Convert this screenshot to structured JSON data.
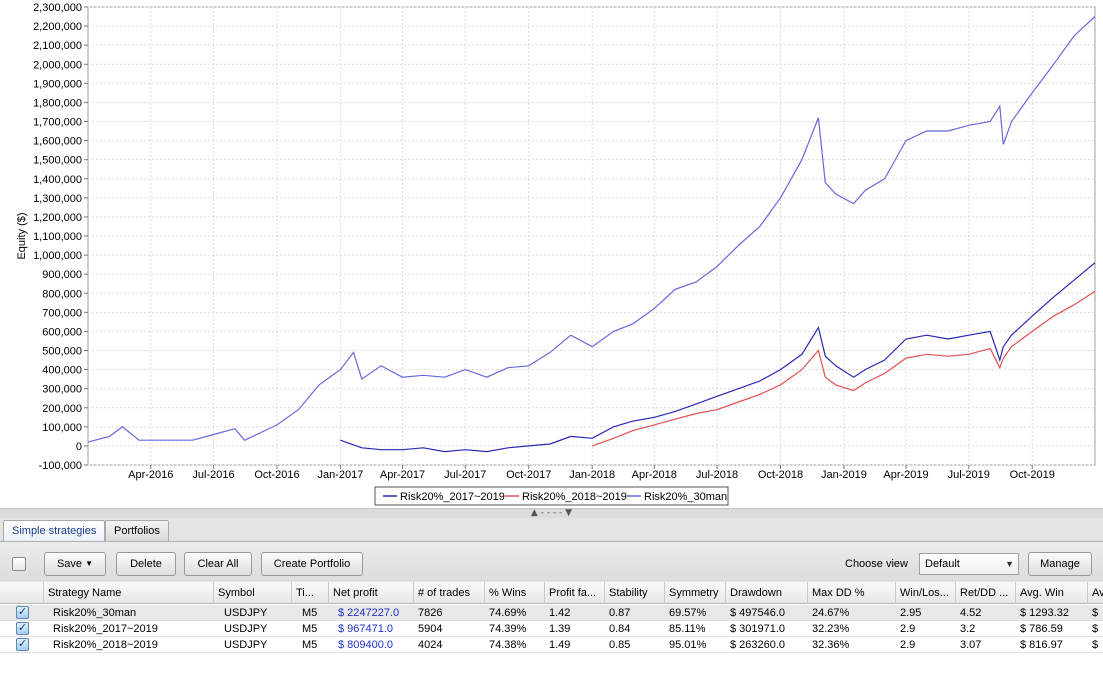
{
  "chart_data": {
    "type": "line",
    "title": "",
    "xlabel": "",
    "ylabel": "Equity ($)",
    "ylim": [
      -100000,
      2300000
    ],
    "yticks": [
      "2,300,000",
      "2,200,000",
      "2,100,000",
      "2,000,000",
      "1,900,000",
      "1,800,000",
      "1,700,000",
      "1,600,000",
      "1,500,000",
      "1,400,000",
      "1,300,000",
      "1,200,000",
      "1,100,000",
      "1,000,000",
      "900,000",
      "800,000",
      "700,000",
      "600,000",
      "500,000",
      "400,000",
      "300,000",
      "200,000",
      "100,000",
      "0",
      "-100,000"
    ],
    "xticks": [
      "Apr-2016",
      "Jul-2016",
      "Oct-2016",
      "Jan-2017",
      "Apr-2017",
      "Jul-2017",
      "Oct-2017",
      "Jan-2018",
      "Apr-2018",
      "Jul-2018",
      "Oct-2018",
      "Jan-2019",
      "Apr-2019",
      "Jul-2019",
      "Oct-2019"
    ],
    "xrange": [
      "2016-01-01",
      "2019-12-31"
    ],
    "grid": true,
    "legend_position": "bottom-center",
    "series": [
      {
        "name": "Risk20%_2017~2019",
        "color": "#2828b4",
        "x": [
          "2017-01-01",
          "2017-02-01",
          "2017-03-01",
          "2017-04-01",
          "2017-05-01",
          "2017-06-01",
          "2017-07-01",
          "2017-08-01",
          "2017-09-01",
          "2017-10-01",
          "2017-11-01",
          "2017-12-01",
          "2018-01-01",
          "2018-02-01",
          "2018-03-01",
          "2018-04-01",
          "2018-05-01",
          "2018-06-01",
          "2018-07-01",
          "2018-08-01",
          "2018-09-01",
          "2018-10-01",
          "2018-11-01",
          "2018-11-25",
          "2018-12-05",
          "2018-12-20",
          "2019-01-15",
          "2019-02-01",
          "2019-03-01",
          "2019-04-01",
          "2019-05-01",
          "2019-06-01",
          "2019-07-01",
          "2019-08-01",
          "2019-08-15",
          "2019-08-20",
          "2019-09-01",
          "2019-10-01",
          "2019-11-01",
          "2019-12-01",
          "2019-12-31"
        ],
        "values": [
          30000,
          -10000,
          -20000,
          -20000,
          -10000,
          -30000,
          -20000,
          -30000,
          -10000,
          0,
          10000,
          50000,
          40000,
          100000,
          130000,
          150000,
          180000,
          220000,
          260000,
          300000,
          340000,
          400000,
          480000,
          620000,
          470000,
          420000,
          360000,
          400000,
          450000,
          560000,
          580000,
          560000,
          580000,
          600000,
          450000,
          520000,
          580000,
          680000,
          780000,
          870000,
          960000
        ]
      },
      {
        "name": "Risk20%_2018~2019",
        "color": "#e05050",
        "x": [
          "2018-01-01",
          "2018-02-01",
          "2018-03-01",
          "2018-04-01",
          "2018-05-01",
          "2018-06-01",
          "2018-07-01",
          "2018-08-01",
          "2018-09-01",
          "2018-10-01",
          "2018-11-01",
          "2018-11-25",
          "2018-12-05",
          "2018-12-20",
          "2019-01-15",
          "2019-02-01",
          "2019-03-01",
          "2019-04-01",
          "2019-05-01",
          "2019-06-01",
          "2019-07-01",
          "2019-08-01",
          "2019-08-15",
          "2019-08-20",
          "2019-09-01",
          "2019-10-01",
          "2019-11-01",
          "2019-12-01",
          "2019-12-31"
        ],
        "values": [
          0,
          40000,
          80000,
          110000,
          140000,
          170000,
          190000,
          230000,
          270000,
          320000,
          400000,
          500000,
          360000,
          320000,
          290000,
          330000,
          380000,
          460000,
          480000,
          470000,
          480000,
          510000,
          410000,
          460000,
          520000,
          600000,
          680000,
          740000,
          810000
        ]
      },
      {
        "name": "Risk20%_30man",
        "color": "#6868dc",
        "x": [
          "2016-01-01",
          "2016-02-01",
          "2016-02-20",
          "2016-03-15",
          "2016-05-01",
          "2016-06-01",
          "2016-07-01",
          "2016-08-01",
          "2016-08-15",
          "2016-10-01",
          "2016-11-01",
          "2016-12-01",
          "2017-01-01",
          "2017-01-20",
          "2017-02-01",
          "2017-03-01",
          "2017-04-01",
          "2017-05-01",
          "2017-06-01",
          "2017-07-01",
          "2017-08-01",
          "2017-09-01",
          "2017-10-01",
          "2017-11-01",
          "2017-12-01",
          "2018-01-01",
          "2018-02-01",
          "2018-03-01",
          "2018-04-01",
          "2018-05-01",
          "2018-06-01",
          "2018-07-01",
          "2018-08-01",
          "2018-09-01",
          "2018-10-01",
          "2018-11-01",
          "2018-11-25",
          "2018-12-05",
          "2018-12-20",
          "2019-01-15",
          "2019-02-01",
          "2019-03-01",
          "2019-04-01",
          "2019-05-01",
          "2019-06-01",
          "2019-07-01",
          "2019-08-01",
          "2019-08-15",
          "2019-08-20",
          "2019-09-01",
          "2019-10-01",
          "2019-11-01",
          "2019-12-01",
          "2019-12-31"
        ],
        "values": [
          20000,
          50000,
          100000,
          30000,
          30000,
          30000,
          60000,
          90000,
          30000,
          110000,
          190000,
          320000,
          400000,
          490000,
          350000,
          420000,
          360000,
          370000,
          360000,
          400000,
          360000,
          410000,
          420000,
          490000,
          580000,
          520000,
          600000,
          640000,
          720000,
          820000,
          860000,
          940000,
          1050000,
          1150000,
          1300000,
          1500000,
          1720000,
          1380000,
          1320000,
          1270000,
          1340000,
          1400000,
          1600000,
          1650000,
          1650000,
          1680000,
          1700000,
          1780000,
          1580000,
          1700000,
          1850000,
          2000000,
          2150000,
          2250000
        ]
      }
    ]
  },
  "splitter_glyph": "▲ - - - - ▼",
  "tabs": [
    {
      "label": "Simple strategies"
    },
    {
      "label": "Portfolios"
    }
  ],
  "toolbar": {
    "save_label": "Save",
    "delete_label": "Delete",
    "clear_all_label": "Clear All",
    "create_portfolio_label": "Create Portfolio",
    "choose_view_label": "Choose view",
    "view_value": "Default",
    "manage_label": "Manage",
    "dropdown_arrow": "▼"
  },
  "table": {
    "columns": [
      "Strategy Name",
      "Symbol",
      "Ti...",
      "Net profit",
      "# of trades",
      "% Wins",
      "Profit fa...",
      "Stability",
      "Symmetry",
      "Drawdown",
      "Max DD %",
      "Win/Los...",
      "Ret/DD ...",
      "Avg. Win",
      "Av"
    ],
    "rows": [
      {
        "checked": true,
        "cells": [
          "Risk20%_30man",
          "USDJPY",
          "M5",
          "$ 2247227.0",
          "7826",
          "74.69%",
          "1.42",
          "0.87",
          "69.57%",
          "$ 497546.0",
          "24.67%",
          "2.95",
          "4.52",
          "$ 1293.32",
          "$"
        ]
      },
      {
        "checked": true,
        "cells": [
          "Risk20%_2017~2019",
          "USDJPY",
          "M5",
          "$ 967471.0",
          "5904",
          "74.39%",
          "1.39",
          "0.84",
          "85.11%",
          "$ 301971.0",
          "32.23%",
          "2.9",
          "3.2",
          "$ 786.59",
          "$"
        ]
      },
      {
        "checked": true,
        "cells": [
          "Risk20%_2018~2019",
          "USDJPY",
          "M5",
          "$ 809400.0",
          "4024",
          "74.38%",
          "1.49",
          "0.85",
          "95.01%",
          "$ 263260.0",
          "32.36%",
          "2.9",
          "3.07",
          "$ 816.97",
          "$"
        ]
      }
    ]
  }
}
